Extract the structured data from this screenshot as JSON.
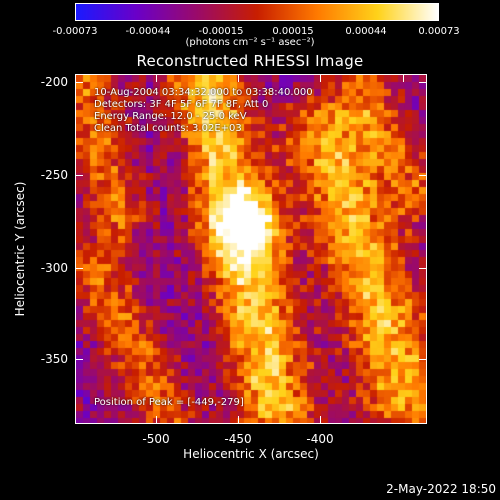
{
  "colorbar": {
    "tick_labels": [
      "-0.00073",
      "-0.00044",
      "-0.00015",
      "0.00015",
      "0.00044",
      "0.00073"
    ],
    "unit": "(photons cm⁻² s⁻¹ asec⁻²)",
    "colors": [
      "#1a1aff",
      "#6a00c8",
      "#9a0a6a",
      "#c81e00",
      "#ff7a00",
      "#ffd21a",
      "#ffffff"
    ]
  },
  "title": "Reconstructed RHESSI Image",
  "info": {
    "line1": "10-Aug-2004 03:34:32.000 to 03:38:40.000",
    "line2": "Detectors: 3F 4F 5F 6F 7F 8F, Att 0",
    "line3": "Energy Range: 12.0 - 25.0 keV",
    "line4": "Clean    Total counts: 3.02E+03",
    "peak": "Position of Peak = [-449,-279]"
  },
  "axes": {
    "xlabel": "Heliocentric X (arcsec)",
    "ylabel": "Heliocentric Y (arcsec)",
    "xticks": [
      "-500",
      "-450",
      "-400"
    ],
    "yticks": [
      "-200",
      "-250",
      "-300",
      "-350"
    ]
  },
  "footer_date": "2-May-2022 18:50"
}
